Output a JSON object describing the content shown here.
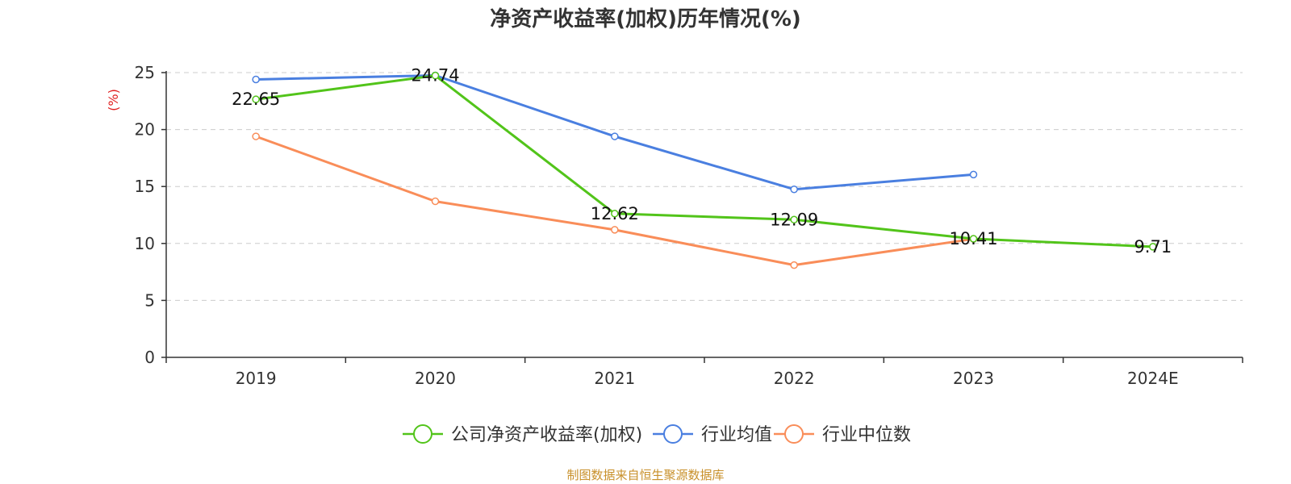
{
  "chart_data": {
    "type": "line",
    "title": "净资产收益率(加权)历年情况(%)",
    "xlabel": "",
    "ylabel": "(%)",
    "categories": [
      "2019",
      "2020",
      "2021",
      "2022",
      "2023",
      "2024E"
    ],
    "ylim": [
      0,
      25
    ],
    "yticks": [
      0,
      5,
      10,
      15,
      20,
      25
    ],
    "grid": true,
    "legend_position": "bottom",
    "series": [
      {
        "name": "公司净资产收益率(加权)",
        "color": "#52c41a",
        "values": [
          22.65,
          24.74,
          12.62,
          12.09,
          10.41,
          9.71
        ],
        "show_labels": true
      },
      {
        "name": "行业均值",
        "color": "#4a7fe0",
        "values": [
          24.4,
          24.75,
          19.4,
          14.75,
          16.05,
          null
        ],
        "show_labels": false
      },
      {
        "name": "行业中位数",
        "color": "#f98d59",
        "values": [
          19.4,
          13.7,
          11.2,
          8.1,
          10.4,
          null
        ],
        "show_labels": false
      }
    ],
    "source": "制图数据来自恒生聚源数据库"
  }
}
